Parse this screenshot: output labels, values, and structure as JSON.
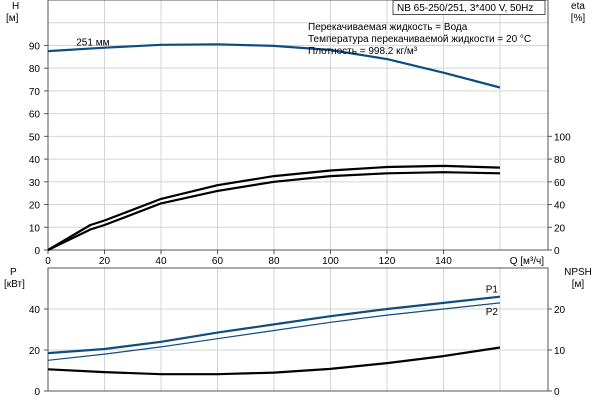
{
  "chart_data": [
    {
      "type": "line",
      "info_box": "NB 65-250/251, 3*400 V, 50Hz",
      "notes": [
        "Перекачиваемая жидкость = Вода",
        "Температура перекачиваемой жидкости = 20 °C",
        "Плотность = 998.2 кг/м³"
      ],
      "ylabel": "H",
      "yunit": "[м]",
      "y2label": "eta",
      "y2unit": "[%]",
      "xlabel": "Q [м³/ч]",
      "xlim": [
        0,
        177
      ],
      "ylim": [
        0,
        110
      ],
      "y2lim": [
        0,
        220
      ],
      "xticks": [
        0,
        20,
        40,
        60,
        80,
        100,
        120,
        140
      ],
      "yticks": [
        0,
        10,
        20,
        30,
        40,
        50,
        60,
        70,
        80,
        90
      ],
      "y2ticks": [
        0,
        20,
        40,
        60,
        80,
        100
      ],
      "grid": true,
      "series": [
        {
          "name": "251 мм",
          "axis": "left",
          "color": "#0f4c81",
          "x": [
            0,
            20,
            40,
            60,
            80,
            100,
            120,
            140,
            160
          ],
          "y": [
            87.5,
            89,
            90.3,
            90.5,
            89.8,
            88,
            84,
            78,
            71.5
          ]
        },
        {
          "axis": "right",
          "color": "#000000",
          "x": [
            0,
            15,
            20,
            40,
            60,
            80,
            100,
            120,
            140,
            160
          ],
          "y": [
            0,
            22,
            26,
            45,
            57,
            65,
            70,
            73,
            74,
            72.5
          ]
        },
        {
          "axis": "right",
          "color": "#000000",
          "x": [
            0,
            15,
            20,
            40,
            60,
            80,
            100,
            120,
            140,
            160
          ],
          "y": [
            0,
            18,
            22,
            41,
            52,
            60,
            65,
            67.5,
            68.5,
            67.5
          ]
        }
      ]
    },
    {
      "type": "line",
      "ylabel": "P",
      "yunit": "[кВт]",
      "y2label": "NPSH",
      "y2unit": "[м]",
      "xlim": [
        0,
        177
      ],
      "ylim": [
        0,
        60
      ],
      "y2lim": [
        0,
        30
      ],
      "yticks": [
        0,
        20,
        40
      ],
      "y2ticks": [
        0,
        10,
        20
      ],
      "grid": true,
      "series": [
        {
          "name": "P1",
          "axis": "left",
          "color": "#0f4c81",
          "x": [
            0,
            20,
            40,
            60,
            80,
            100,
            120,
            140,
            160
          ],
          "y": [
            18.5,
            20.5,
            24,
            28.5,
            32.5,
            36.5,
            40,
            43,
            46
          ]
        },
        {
          "name": "P2",
          "axis": "left",
          "color": "#0f4c81",
          "x": [
            0,
            20,
            40,
            60,
            80,
            100,
            120,
            140,
            160
          ],
          "y": [
            15,
            18,
            21.5,
            25.5,
            29.5,
            33.5,
            37,
            40,
            43
          ]
        },
        {
          "axis": "right",
          "color": "#000000",
          "x": [
            0,
            20,
            40,
            60,
            80,
            100,
            120,
            140,
            160
          ],
          "y": [
            5.3,
            4.6,
            4.1,
            4.1,
            4.5,
            5.4,
            6.8,
            8.5,
            10.6
          ]
        }
      ]
    }
  ]
}
